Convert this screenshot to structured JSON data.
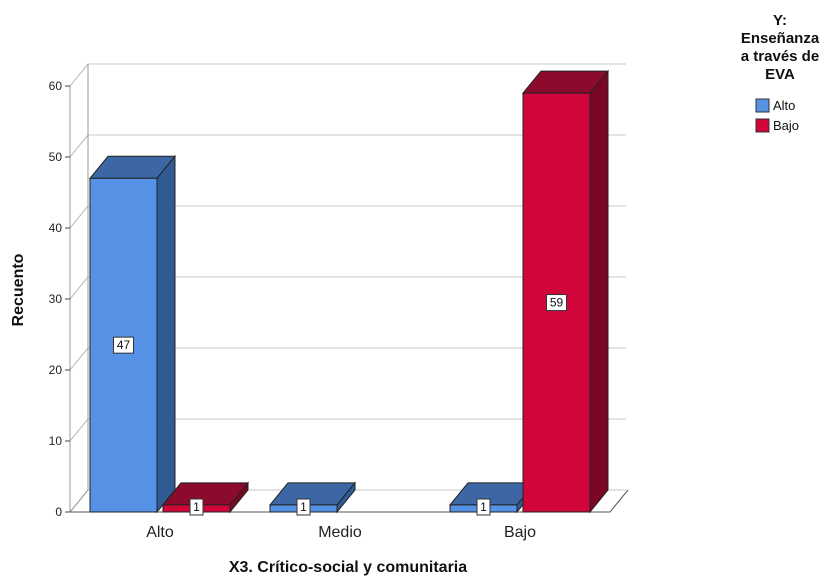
{
  "chart_data": {
    "type": "bar",
    "style": "3d-clustered",
    "categories": [
      "Alto",
      "Medio",
      "Bajo"
    ],
    "series": [
      {
        "name": "Alto",
        "values": [
          47,
          1,
          1
        ],
        "color": "#5591e4",
        "side_color": "#2f5a94",
        "top_color": "#3c67a4"
      },
      {
        "name": "Bajo",
        "values": [
          1,
          null,
          59
        ],
        "color": "#d0063a",
        "side_color": "#7a0626",
        "top_color": "#8c0a2c"
      }
    ],
    "xlabel": "X3. Crítico-social y comunitaria",
    "ylabel": "Recuento",
    "ylim": [
      0,
      60
    ],
    "yticks": [
      0,
      10,
      20,
      30,
      40,
      50,
      60
    ],
    "grid": true,
    "legend": {
      "title_lines": [
        "Y:",
        "Enseñanza",
        "a través de",
        "EVA"
      ],
      "placement": "top-right"
    }
  }
}
